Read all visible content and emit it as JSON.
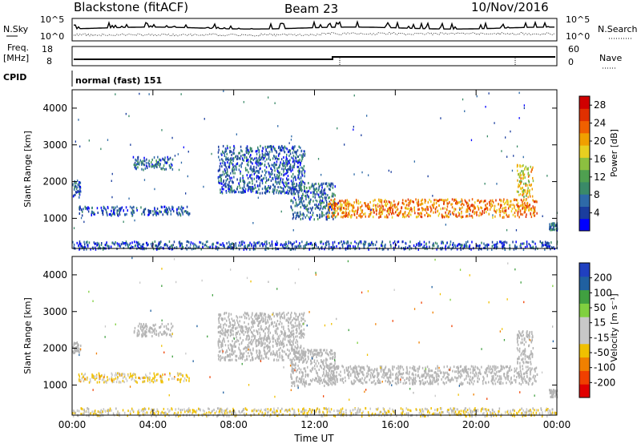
{
  "header": {
    "station": "Blackstone (fitACF)",
    "beam": "Beam 23",
    "date": "10/Nov/2016"
  },
  "summary": {
    "nsky_label": "N.Sky",
    "nsearch_label": "N.Search",
    "noise_ticks_left": [
      "10^5",
      "10^0"
    ],
    "noise_ticks_right": [
      "10^5",
      "10^0"
    ],
    "freq_label_line1": "Freq.",
    "freq_label_line2": "[MHz]",
    "freq_ticks": [
      "18",
      "8"
    ],
    "nave_label": "Nave",
    "nave_ticks": [
      "60",
      "0"
    ],
    "cpid_label": "CPID",
    "cpid_value": "normal (fast) 151"
  },
  "colors": {
    "power_scale": [
      "#0000ff",
      "#1a3d9e",
      "#2e6aa8",
      "#3a8a68",
      "#4fa050",
      "#8cc040",
      "#e8d020",
      "#f0a000",
      "#f06000",
      "#e03000",
      "#d00000"
    ],
    "velocity_scale": [
      "#e00000",
      "#f04000",
      "#f08000",
      "#f0c000",
      "#c8c8c8",
      "#c8c8c8",
      "#80d040",
      "#40a040",
      "#2060a0",
      "#2040c0"
    ],
    "ground_scatter": "#b4b4b4"
  },
  "chart_data": [
    {
      "type": "heatmap",
      "panel": "power",
      "ylabel": "Slant Range [km]",
      "xlabel": "Time UT",
      "xticks": [
        "00:00",
        "04:00",
        "08:00",
        "12:00",
        "16:00",
        "20:00",
        "00:00"
      ],
      "yticks": [
        "1000",
        "2000",
        "3000",
        "4000"
      ],
      "ylim": [
        180,
        4500
      ],
      "xlim_hours": [
        0,
        24
      ],
      "colorbar_label": "Power [dB]",
      "colorbar_ticks": [
        "4",
        "8",
        "12",
        "16",
        "20",
        "24",
        "28"
      ],
      "colorbar_range": [
        0,
        30
      ],
      "echo_regions": [
        {
          "t": [
            0.0,
            0.4
          ],
          "range": [
            1600,
            2100
          ],
          "power": 6
        },
        {
          "t": [
            0.3,
            5.8
          ],
          "range": [
            1100,
            1350
          ],
          "power": 5
        },
        {
          "t": [
            3.0,
            5.0
          ],
          "range": [
            2350,
            2700
          ],
          "power": 7
        },
        {
          "t": [
            7.2,
            11.5
          ],
          "range": [
            1700,
            3000
          ],
          "power": 6
        },
        {
          "t": [
            10.8,
            13.0
          ],
          "range": [
            1000,
            2000
          ],
          "power": 7
        },
        {
          "t": [
            12.6,
            23.0
          ],
          "range": [
            1050,
            1550
          ],
          "power": 22
        },
        {
          "t": [
            22.0,
            22.8
          ],
          "range": [
            1600,
            2500
          ],
          "power": 18
        },
        {
          "t": [
            23.6,
            24.0
          ],
          "range": [
            700,
            900
          ],
          "power": 7
        },
        {
          "t": [
            0.0,
            24.0
          ],
          "range": [
            180,
            400
          ],
          "power": 5
        }
      ]
    },
    {
      "type": "heatmap",
      "panel": "velocity",
      "ylabel": "Slant Range [km]",
      "xlabel": "Time UT",
      "xticks": [
        "00:00",
        "04:00",
        "08:00",
        "12:00",
        "16:00",
        "20:00",
        "00:00"
      ],
      "yticks": [
        "1000",
        "2000",
        "3000",
        "4000"
      ],
      "ylim": [
        180,
        4500
      ],
      "xlim_hours": [
        0,
        24
      ],
      "colorbar_label": "Velocity [m s⁻¹]",
      "colorbar_ticks": [
        "200",
        "100",
        "50",
        "15",
        "-15",
        "-50",
        "-100",
        "-200"
      ],
      "colorbar_range": [
        -250,
        250
      ],
      "echo_regions": [
        {
          "t": [
            0.0,
            0.4
          ],
          "range": [
            1900,
            2200
          ],
          "velocity": 0
        },
        {
          "t": [
            0.3,
            5.8
          ],
          "range": [
            1100,
            1350
          ],
          "velocity": -60
        },
        {
          "t": [
            3.0,
            5.0
          ],
          "range": [
            2350,
            2700
          ],
          "velocity": 0
        },
        {
          "t": [
            7.2,
            11.5
          ],
          "range": [
            1700,
            3000
          ],
          "velocity": 0
        },
        {
          "t": [
            10.8,
            13.0
          ],
          "range": [
            1000,
            2000
          ],
          "velocity": 0
        },
        {
          "t": [
            12.6,
            23.0
          ],
          "range": [
            1050,
            1550
          ],
          "velocity": 0
        },
        {
          "t": [
            22.0,
            22.8
          ],
          "range": [
            1600,
            2500
          ],
          "velocity": 0
        },
        {
          "t": [
            23.6,
            24.0
          ],
          "range": [
            700,
            900
          ],
          "velocity": 0
        },
        {
          "t": [
            0.0,
            24.0
          ],
          "range": [
            180,
            400
          ],
          "velocity": -40
        }
      ]
    }
  ]
}
